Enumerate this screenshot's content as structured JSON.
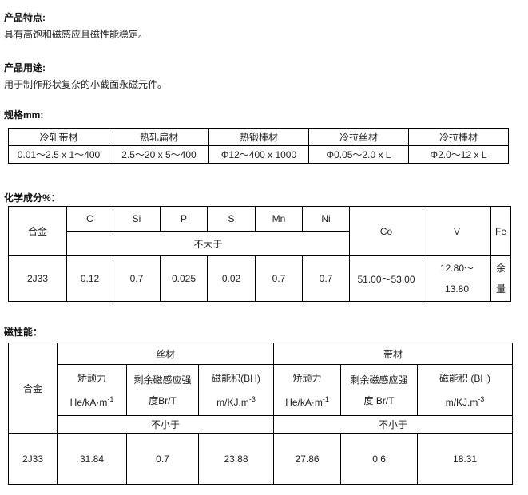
{
  "features": {
    "heading": "产品特点:",
    "text": "具有高饱和磁感应且磁性能稳定。"
  },
  "usage": {
    "heading": "产品用途:",
    "text": "用于制作形状复杂的小截面永磁元件。"
  },
  "specs": {
    "heading": "规格mm:",
    "headers": [
      "冷轧带材",
      "热轧扁材",
      "热锻棒材",
      "冷拉丝材",
      "冷拉棒材"
    ],
    "values": [
      "0.01～2.5 x 1～400",
      "2.5～20 x 5～400",
      "Φ12～400 x 1000",
      "Φ0.05～2.0 x L",
      "Φ2.0～12 x L"
    ]
  },
  "chemistry": {
    "heading": "化学成分%：",
    "alloy_label": "合金",
    "elements": [
      "C",
      "Si",
      "P",
      "S",
      "Mn",
      "Ni",
      "Co",
      "V",
      "Fe"
    ],
    "limit_label": "不大于",
    "row": {
      "alloy": "2J33",
      "values": [
        "0.12",
        "0.7",
        "0.025",
        "0.02",
        "0.7",
        "0.7",
        "51.00～53.00"
      ],
      "v_line1": "12.80～",
      "v_line2": "13.80",
      "fe_line1": "余",
      "fe_line2": "量"
    }
  },
  "magnetic": {
    "heading": "磁性能：",
    "alloy_label": "合金",
    "groups": [
      "丝材",
      "带材"
    ],
    "wire": [
      {
        "line1": "矫顽力",
        "line2": "He/kA·m",
        "sup": "-1"
      },
      {
        "line1": "剩余磁感应强",
        "line2": "度Br/T",
        "sup": ""
      },
      {
        "line1": "磁能积(BH)",
        "line2": "m/KJ.m",
        "sup": "-3"
      }
    ],
    "strip": [
      {
        "line1": "矫顽力",
        "line2": "He/kA·m",
        "sup": "-1"
      },
      {
        "line1": "剩余磁感应强",
        "line2": "度 Br/T",
        "sup": ""
      },
      {
        "line1": "磁能积 (BH)",
        "line2": "m/KJ.m",
        "sup": "-3"
      }
    ],
    "limit_label": "不小于",
    "row": {
      "alloy": "2J33",
      "values": [
        "31.84",
        "0.7",
        "23.88",
        "27.86",
        "0.6",
        "18.31"
      ]
    }
  }
}
